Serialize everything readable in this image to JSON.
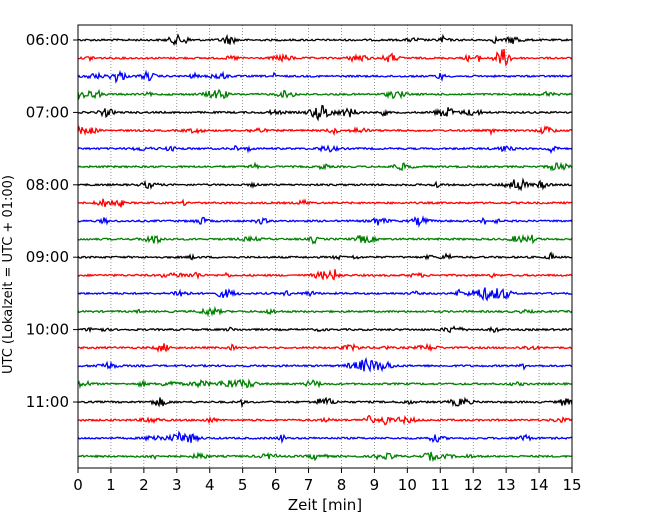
{
  "chart_data": {
    "type": "line",
    "xlabel": "Zeit  [min]",
    "ylabel": "UTC (Lokalzeit = UTC + 01:00)",
    "xlim": [
      0,
      15
    ],
    "x_ticks": [
      "0",
      "1",
      "2",
      "3",
      "4",
      "5",
      "6",
      "7",
      "8",
      "9",
      "10",
      "11",
      "12",
      "13",
      "14",
      "15"
    ],
    "y_ticks": [
      "06:00",
      "07:00",
      "08:00",
      "09:00",
      "10:00",
      "11:00"
    ],
    "grid": "vertical dotted",
    "trace_colors": [
      "#000000",
      "#ff0000",
      "#0000ff",
      "#008000"
    ],
    "trace_count": 24,
    "traces_per_hour": 4
  }
}
